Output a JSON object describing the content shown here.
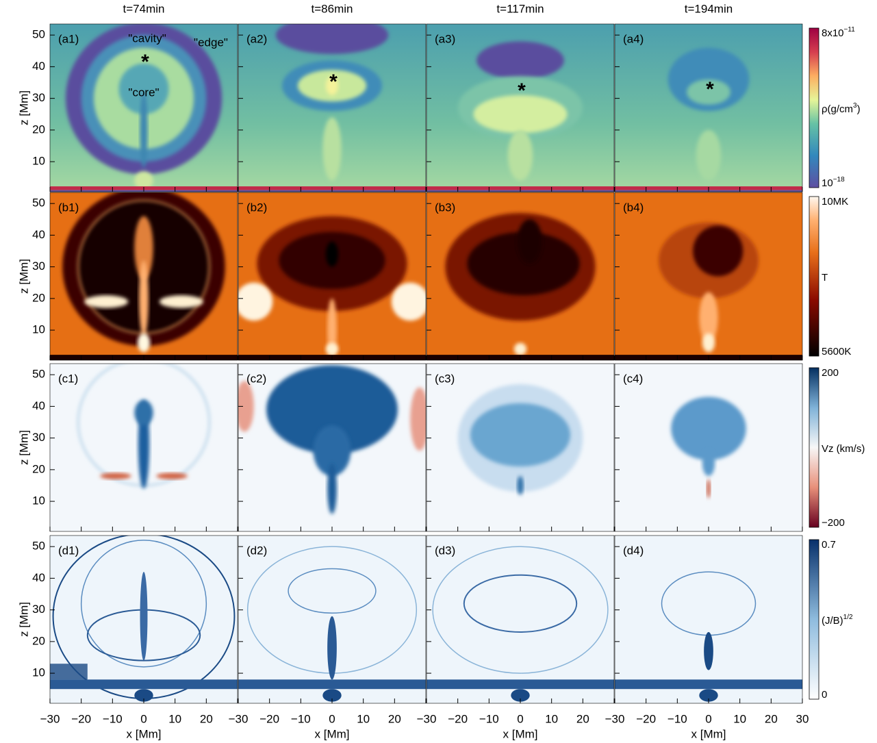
{
  "column_titles": [
    "t=74min",
    "t=86min",
    "t=117min",
    "t=194min"
  ],
  "panel_labels": [
    [
      "(a1)",
      "(a2)",
      "(a3)",
      "(a4)"
    ],
    [
      "(b1)",
      "(b2)",
      "(b3)",
      "(b4)"
    ],
    [
      "(c1)",
      "(c2)",
      "(c3)",
      "(c4)"
    ],
    [
      "(d1)",
      "(d2)",
      "(d3)",
      "(d4)"
    ]
  ],
  "x_axis": {
    "label": "x [Mm]",
    "xlim": [
      -30,
      30
    ],
    "ticks": [
      {
        "value": -30,
        "label": "−30"
      },
      {
        "value": -20,
        "label": "−20"
      },
      {
        "value": -10,
        "label": "−10"
      },
      0,
      10,
      20,
      30
    ]
  },
  "y_axis": {
    "label": "z [Mm]",
    "ylim": [
      0.5,
      53.5
    ],
    "ticks": [
      10,
      20,
      30,
      40,
      50
    ]
  },
  "colorbars": [
    {
      "top": {
        "text": "8x10",
        "sup": "−11"
      },
      "label": {
        "text": "ρ(g/cm",
        "sup": "3",
        "tail": ")"
      },
      "bottom": {
        "text": "10",
        "sup": "−18"
      }
    },
    {
      "top": {
        "text": "10MK"
      },
      "label": {
        "text": "T"
      },
      "bottom": {
        "text": "5600K"
      }
    },
    {
      "top": {
        "text": "200"
      },
      "label": {
        "text": "Vz (km/s)"
      },
      "bottom": {
        "text": "−200"
      }
    },
    {
      "top": {
        "text": "0.7"
      },
      "label": {
        "text": "(J/B)",
        "sup": "1/2"
      },
      "bottom": {
        "text": "0"
      }
    }
  ],
  "annotations": [
    "\"cavity\"",
    "\"edge\"",
    "\"core\""
  ],
  "markers": [
    "*",
    "*",
    "*",
    "*"
  ]
}
